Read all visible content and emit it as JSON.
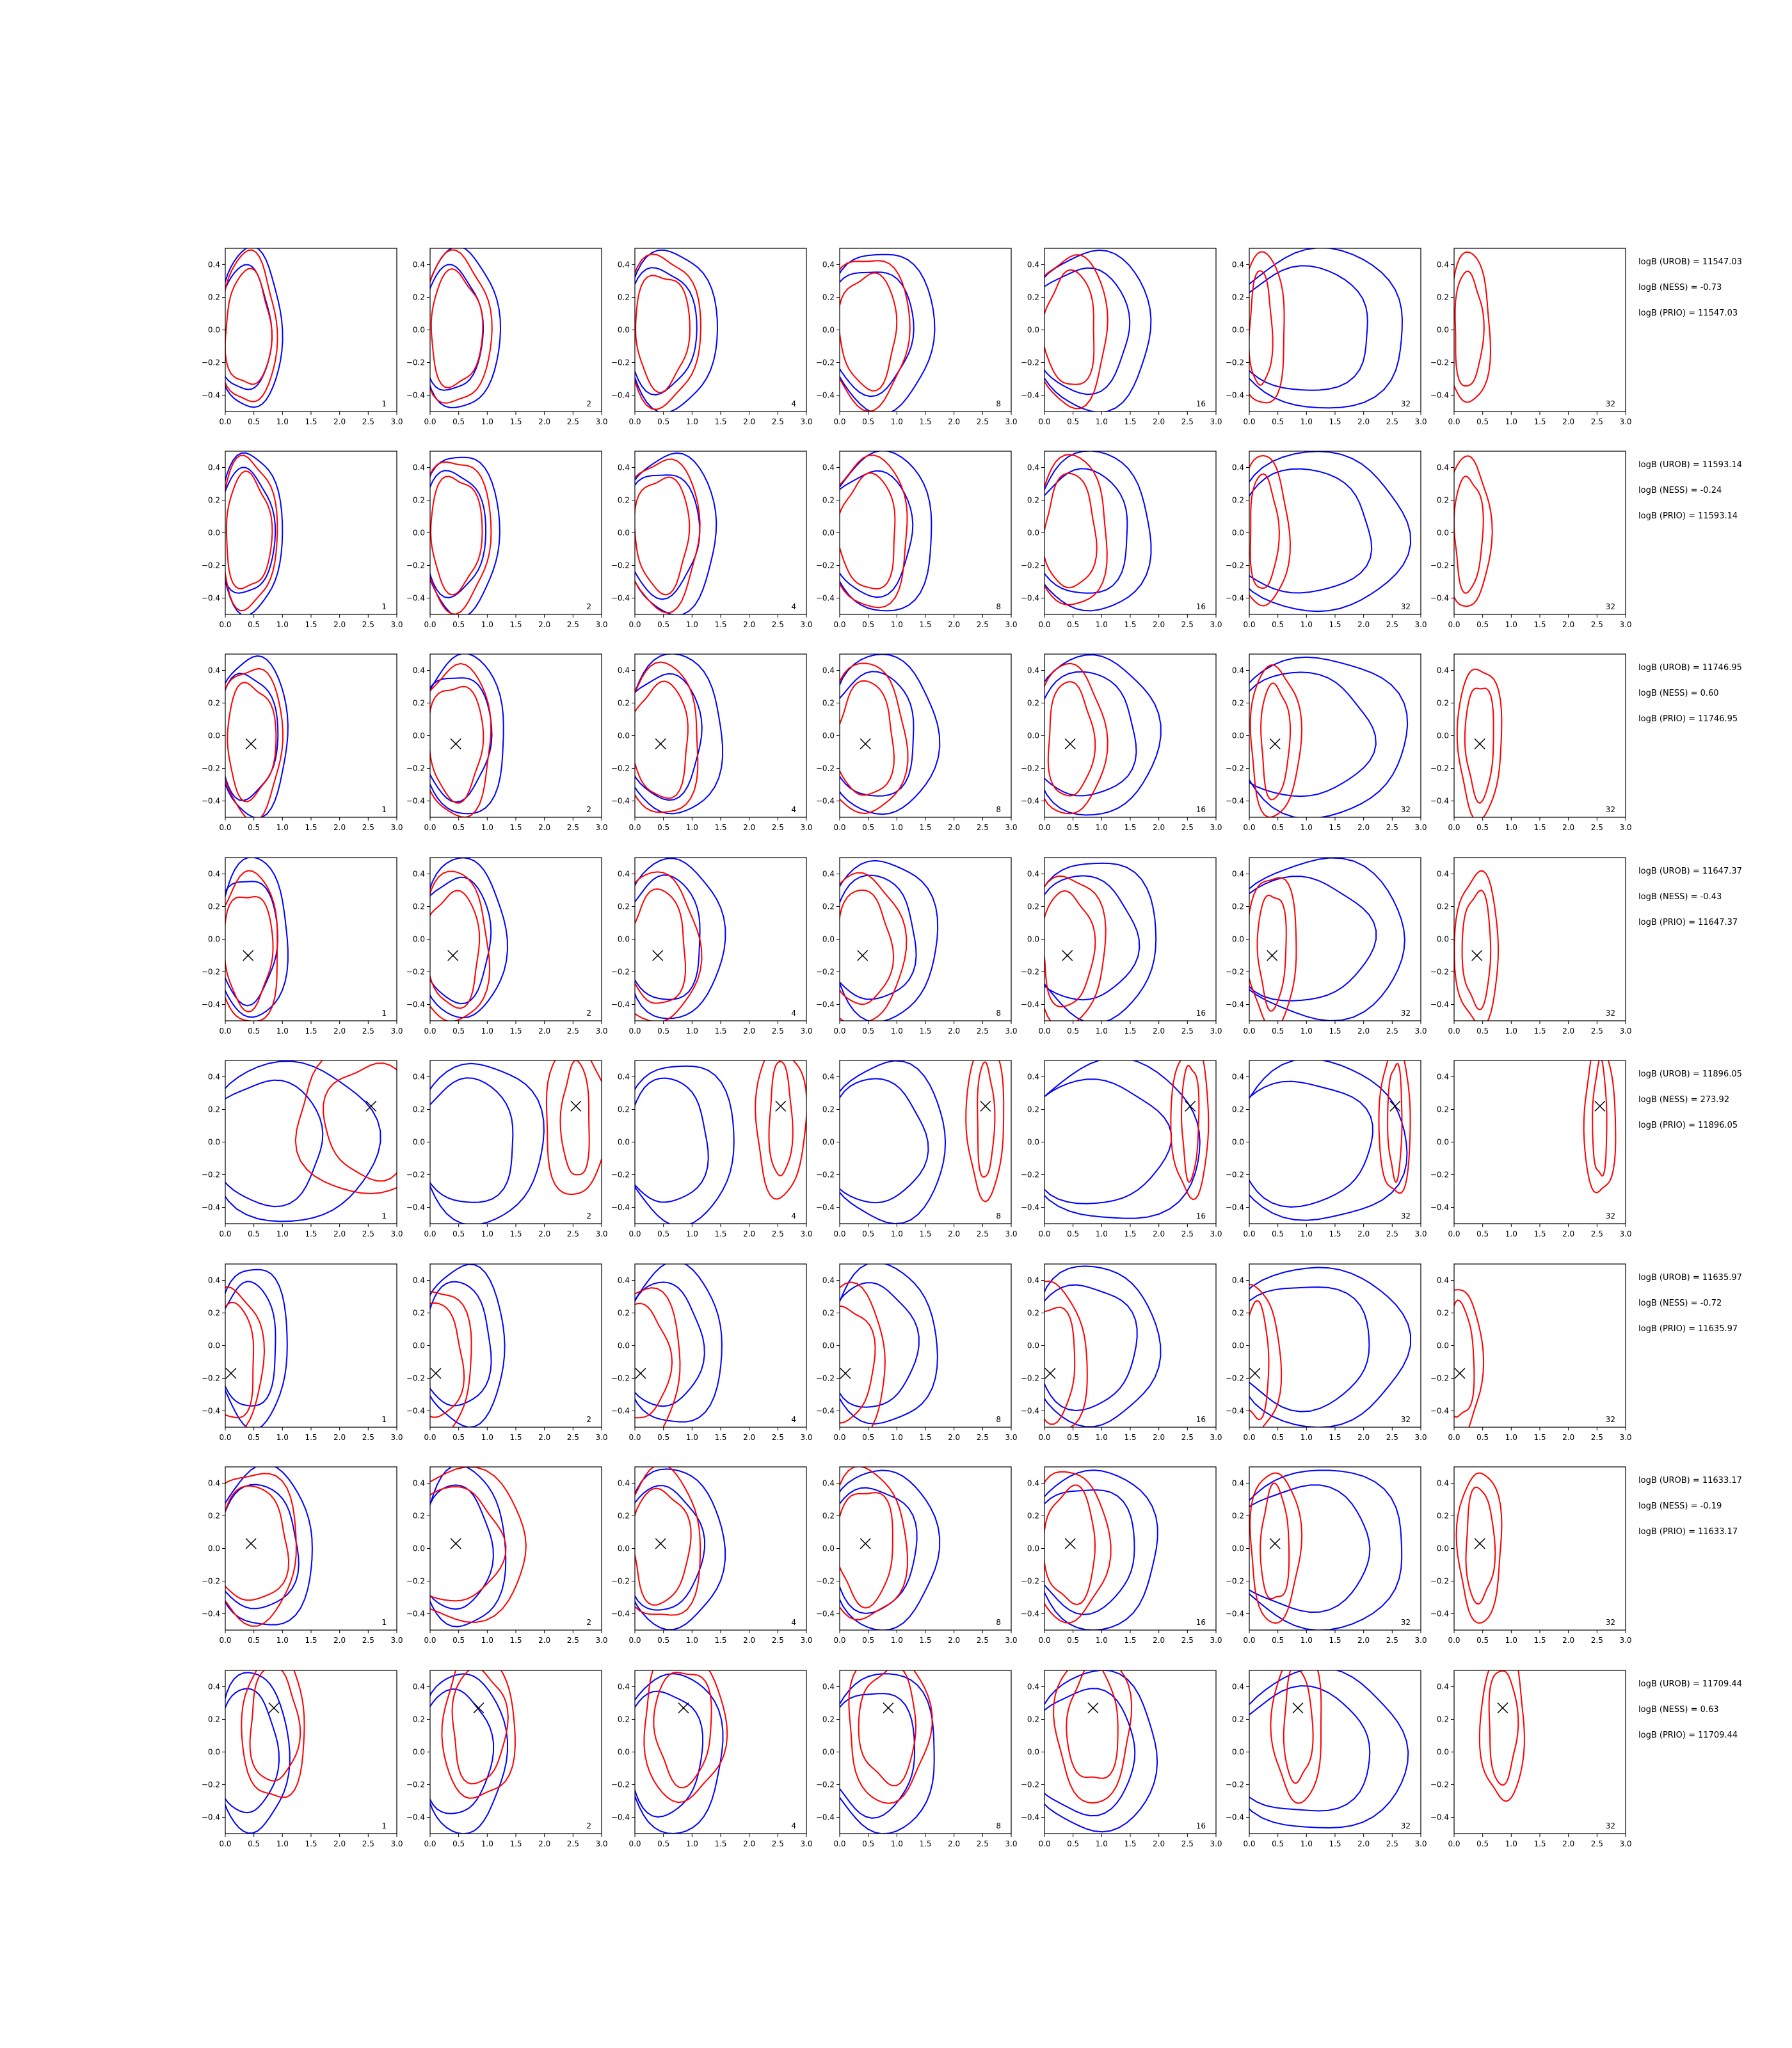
{
  "chart_data": {
    "type": "contour-grid",
    "xlim": [
      0.0,
      3.0
    ],
    "ylim": [
      -0.5,
      0.5
    ],
    "x_ticks": [
      "0.0",
      "0.5",
      "1.0",
      "1.5",
      "2.0",
      "2.5",
      "3.0"
    ],
    "y_ticks": [
      "0.4",
      "0.2",
      "0.0",
      "−0.2",
      "−0.4"
    ],
    "y_tick_values": [
      0.4,
      0.2,
      0.0,
      -0.2,
      -0.4
    ],
    "x_tick_values": [
      0,
      0.5,
      1.0,
      1.5,
      2.0,
      2.5,
      3.0
    ],
    "panel_labels": [
      "1",
      "2",
      "4",
      "8",
      "16",
      "32",
      "32"
    ],
    "colors": {
      "series_a": "#0000ff",
      "series_b": "#ff0000",
      "marker": "#000000"
    },
    "rows": [
      {
        "truth": null,
        "stats": [
          "logB (UROB) = 11547.03",
          "logB (NESS) = -0.73",
          "logB (PRIO) = 11547.03"
        ],
        "blue": [
          [
            0.75,
            0.9,
            0.55
          ],
          [
            0.85,
            1.1,
            0.6
          ],
          [
            1.0,
            1.3,
            0.7
          ],
          [
            1.2,
            1.5,
            0.8
          ],
          [
            1.4,
            1.7,
            0.9
          ],
          [
            2.0,
            2.5,
            1.6
          ],
          null
        ],
        "red": [
          [
            0.8,
            0.9,
            0.5
          ],
          [
            0.9,
            1.1,
            0.6
          ],
          [
            0.95,
            1.2,
            0.6
          ],
          [
            1.0,
            1.3,
            0.7
          ],
          [
            0.9,
            1.2,
            0.6
          ],
          [
            0.4,
            0.8,
            0.5
          ],
          [
            0.5,
            0.7,
            0.5
          ]
        ]
      },
      {
        "truth": null,
        "stats": [
          "logB (UROB) = 11593.14",
          "logB (NESS) = -0.24",
          "logB (PRIO) = 11593.14"
        ],
        "blue": [
          [
            0.8,
            0.9,
            0.55
          ],
          [
            0.9,
            1.1,
            0.6
          ],
          [
            1.05,
            1.3,
            0.7
          ],
          [
            1.2,
            1.5,
            0.8
          ],
          [
            1.4,
            1.7,
            0.9
          ],
          [
            2.0,
            2.5,
            1.6
          ],
          null
        ],
        "red": [
          [
            0.8,
            0.9,
            0.5
          ],
          [
            0.9,
            1.1,
            0.6
          ],
          [
            0.95,
            1.2,
            0.6
          ],
          [
            1.0,
            1.3,
            0.7
          ],
          [
            0.9,
            1.2,
            0.6
          ],
          [
            0.5,
            0.8,
            0.5
          ],
          [
            0.5,
            0.7,
            0.5
          ]
        ]
      },
      {
        "truth": [
          0.45,
          -0.05
        ],
        "stats": [
          "logB (UROB) = 11746.95",
          "logB (NESS) = 0.60",
          "logB (PRIO) = 11746.95"
        ],
        "blue": [
          [
            0.85,
            1.0,
            0.6
          ],
          [
            1.0,
            1.2,
            0.7
          ],
          [
            1.1,
            1.4,
            0.75
          ],
          [
            1.25,
            1.55,
            0.85
          ],
          [
            1.5,
            1.8,
            1.0
          ],
          [
            2.0,
            2.5,
            1.6
          ],
          null
        ],
        "red": [
          [
            0.85,
            1.0,
            0.55
          ],
          [
            0.95,
            1.15,
            0.6
          ],
          [
            1.0,
            1.25,
            0.65
          ],
          [
            1.0,
            1.3,
            0.7
          ],
          [
            0.8,
            1.1,
            0.5
          ],
          [
            0.5,
            0.8,
            0.5
          ],
          [
            0.5,
            0.7,
            0.45
          ]
        ]
      },
      {
        "truth": [
          0.4,
          -0.1
        ],
        "stats": [
          "logB (UROB) = 11647.37",
          "logB (NESS) = -0.43",
          "logB (PRIO) = 11647.37"
        ],
        "blue": [
          [
            0.85,
            1.0,
            0.6
          ],
          [
            1.0,
            1.2,
            0.7
          ],
          [
            1.1,
            1.4,
            0.75
          ],
          [
            1.25,
            1.55,
            0.85
          ],
          [
            1.5,
            1.8,
            1.0
          ],
          [
            2.0,
            2.5,
            1.6
          ],
          null
        ],
        "red": [
          [
            0.85,
            1.0,
            0.55
          ],
          [
            0.95,
            1.15,
            0.6
          ],
          [
            1.0,
            1.3,
            0.7
          ],
          [
            1.0,
            1.3,
            0.7
          ],
          [
            0.9,
            1.2,
            0.6
          ],
          [
            0.5,
            0.8,
            0.5
          ],
          [
            0.5,
            0.7,
            0.45
          ]
        ]
      },
      {
        "truth": [
          2.55,
          0.22
        ],
        "stats": [
          "logB (UROB) = 11896.05",
          "logB (NESS) = 273.92",
          "logB (PRIO) = 11896.05"
        ],
        "blue": [
          [
            1.6,
            2.4,
            0.9
          ],
          [
            1.4,
            1.8,
            0.8
          ],
          [
            1.2,
            1.6,
            0.8
          ],
          [
            1.4,
            1.7,
            0.9
          ],
          [
            2.0,
            2.5,
            1.6
          ],
          [
            2.0,
            2.5,
            1.7
          ],
          null
        ],
        "red": [
          [
            1.6,
            2.4,
            0.7
          ],
          [
            0.5,
            1.0,
            0.5
          ],
          [
            0.4,
            0.8,
            0.4
          ],
          [
            0.3,
            0.6,
            0.3
          ],
          [
            0.3,
            0.6,
            0.3
          ],
          [
            0.25,
            0.5,
            0.25
          ],
          [
            0.25,
            0.5,
            0.25
          ]
        ]
      },
      {
        "truth": [
          0.1,
          -0.17
        ],
        "stats": [
          "logB (UROB) = 11635.97",
          "logB (NESS) = -0.72",
          "logB (PRIO) = 11635.97"
        ],
        "blue": [
          [
            0.85,
            1.0,
            0.6
          ],
          [
            1.0,
            1.2,
            0.7
          ],
          [
            1.1,
            1.4,
            0.75
          ],
          [
            1.25,
            1.55,
            0.85
          ],
          [
            1.5,
            1.8,
            1.0
          ],
          [
            2.0,
            2.5,
            1.6
          ],
          null
        ],
        "red": [
          [
            0.85,
            1.0,
            0.55
          ],
          [
            0.95,
            1.15,
            0.6
          ],
          [
            1.0,
            1.3,
            0.7
          ],
          [
            1.0,
            1.3,
            0.7
          ],
          [
            0.9,
            1.2,
            0.6
          ],
          [
            0.5,
            0.8,
            0.5
          ],
          [
            0.5,
            0.7,
            0.45
          ]
        ]
      },
      {
        "truth": [
          0.45,
          0.03
        ],
        "stats": [
          "logB (UROB) = 11633.17",
          "logB (NESS) = -0.19",
          "logB (PRIO) = 11633.17"
        ],
        "blue": [
          [
            1.2,
            1.4,
            0.75
          ],
          [
            1.0,
            1.2,
            0.7
          ],
          [
            1.1,
            1.4,
            0.75
          ],
          [
            1.25,
            1.55,
            0.85
          ],
          [
            1.5,
            1.8,
            1.0
          ],
          [
            2.0,
            2.5,
            1.6
          ],
          null
        ],
        "red": [
          [
            1.3,
            1.5,
            0.7
          ],
          [
            1.6,
            2.3,
            1.1
          ],
          [
            1.0,
            1.3,
            0.7
          ],
          [
            1.0,
            1.3,
            0.7
          ],
          [
            0.9,
            1.2,
            0.6
          ],
          [
            0.5,
            0.8,
            0.5
          ],
          [
            0.5,
            0.7,
            0.45
          ]
        ]
      },
      {
        "truth": [
          0.85,
          0.27
        ],
        "stats": [
          "logB (UROB) = 11709.44",
          "logB (NESS) = 0.63",
          "logB (PRIO) = 11709.44"
        ],
        "blue": [
          [
            0.85,
            1.0,
            0.6
          ],
          [
            1.0,
            1.2,
            0.7
          ],
          [
            1.1,
            1.4,
            0.75
          ],
          [
            1.25,
            1.55,
            0.85
          ],
          [
            1.5,
            1.8,
            1.0
          ],
          [
            2.0,
            2.5,
            1.6
          ],
          null
        ],
        "red": [
          [
            0.85,
            1.0,
            0.55
          ],
          [
            0.95,
            1.15,
            0.6
          ],
          [
            1.0,
            1.3,
            0.7
          ],
          [
            1.0,
            1.3,
            0.7
          ],
          [
            0.9,
            1.2,
            0.6
          ],
          [
            0.5,
            0.8,
            0.5
          ],
          [
            0.5,
            0.7,
            0.45
          ]
        ]
      }
    ]
  }
}
